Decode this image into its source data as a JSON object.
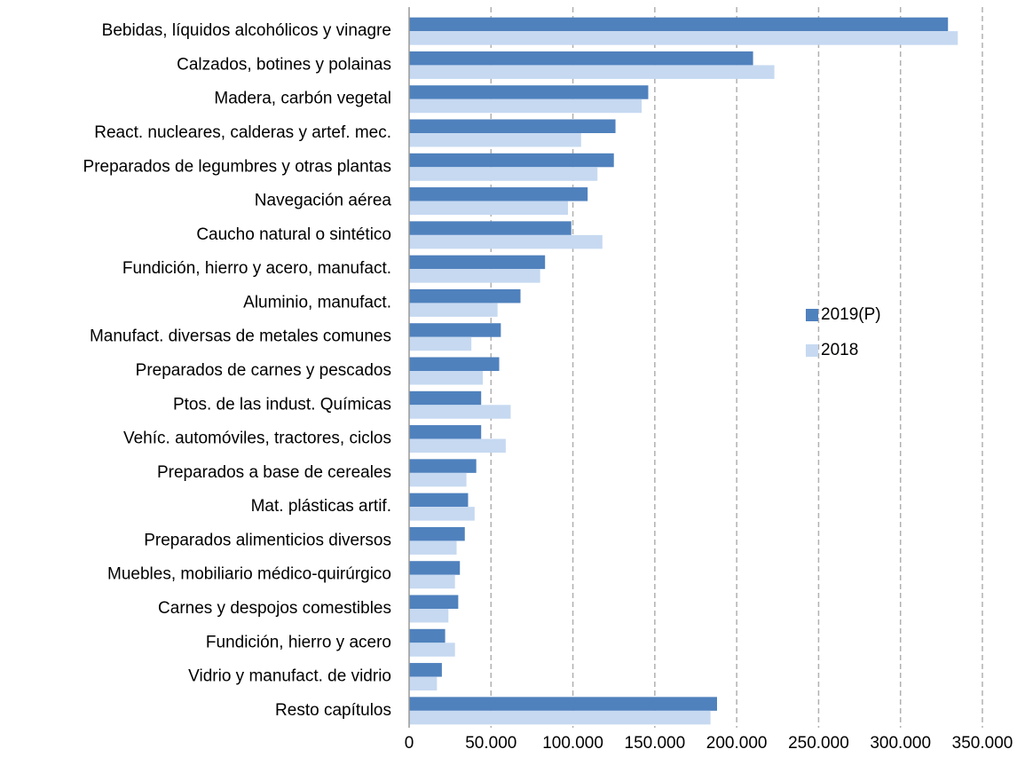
{
  "chart_data": {
    "type": "hbar",
    "categories": [
      "Bebidas, líquidos alcohólicos y vinagre",
      "Calzados, botines y polainas",
      "Madera, carbón vegetal",
      "React. nucleares, calderas y artef. mec.",
      "Preparados de legumbres y otras plantas",
      "Navegación aérea",
      "Caucho natural o sintético",
      "Fundición, hierro y acero, manufact.",
      "Aluminio, manufact.",
      "Manufact. diversas de metales comunes",
      "Preparados de carnes y pescados",
      "Ptos. de las indust. Químicas",
      "Vehíc. automóviles, tractores, ciclos",
      "Preparados a base de cereales",
      "Mat. plásticas artif.",
      "Preparados alimenticios diversos",
      "Muebles, mobiliario médico-quirúrgico",
      "Carnes y despojos comestibles",
      "Fundición, hierro y acero",
      "Vidrio y manufact. de vidrio",
      "Resto capítulos"
    ],
    "series": [
      {
        "name": "2019(P)",
        "color": "#4f81bd",
        "values": [
          329000,
          210000,
          146000,
          126000,
          125000,
          109000,
          99000,
          83000,
          68000,
          56000,
          55000,
          44000,
          44000,
          41000,
          36000,
          34000,
          31000,
          30000,
          22000,
          20000,
          188000
        ]
      },
      {
        "name": "2018",
        "color": "#c6d9f1",
        "values": [
          335000,
          223000,
          142000,
          105000,
          115000,
          97000,
          118000,
          80000,
          54000,
          38000,
          45000,
          62000,
          59000,
          35000,
          40000,
          29000,
          28000,
          24000,
          28000,
          17000,
          184000
        ]
      }
    ],
    "xlim": [
      0,
      350000
    ],
    "xticks": [
      0,
      {
        "value": 50000,
        "label": "50.000"
      },
      {
        "value": 100000,
        "label": "100.000"
      },
      {
        "value": 150000,
        "label": "150.000"
      },
      {
        "value": 200000,
        "label": "200.000"
      },
      {
        "value": 250000,
        "label": "250.000"
      },
      {
        "value": 300000,
        "label": "300.000"
      },
      {
        "value": 350000,
        "label": "350.000"
      }
    ],
    "grid": true,
    "legend": "right"
  }
}
